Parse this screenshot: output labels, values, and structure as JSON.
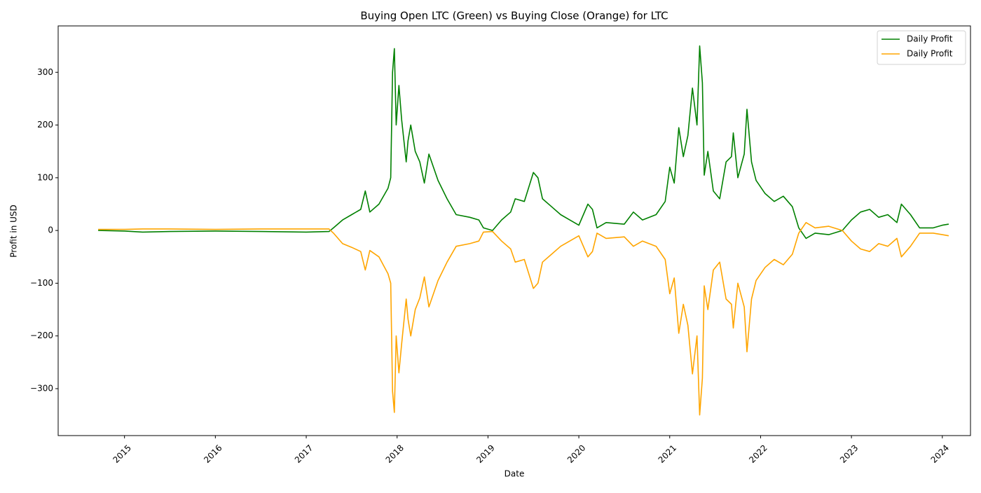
{
  "chart_data": {
    "type": "line",
    "title": "Buying Open LTC (Green) vs Buying Close (Orange) for LTC",
    "xlabel": "Date",
    "ylabel": "Profit in USD",
    "xlim": [
      2014.27,
      2024.31
    ],
    "ylim": [
      -389,
      388
    ],
    "xticks": [
      2015,
      2016,
      2017,
      2018,
      2019,
      2020,
      2021,
      2022,
      2023,
      2024
    ],
    "yticks": [
      {
        "value": -300,
        "label": "−300"
      },
      {
        "value": -200,
        "label": "−200"
      },
      {
        "value": -100,
        "label": "−100"
      },
      0,
      100,
      200,
      300
    ],
    "legend": "upper right",
    "grid": false,
    "x": [
      2014.71,
      2015.0,
      2015.2,
      2015.5,
      2016.0,
      2016.5,
      2017.0,
      2017.25,
      2017.3,
      2017.4,
      2017.5,
      2017.6,
      2017.65,
      2017.7,
      2017.8,
      2017.9,
      2017.93,
      2017.95,
      2017.97,
      2017.99,
      2018.02,
      2018.05,
      2018.1,
      2018.12,
      2018.15,
      2018.2,
      2018.25,
      2018.3,
      2018.35,
      2018.45,
      2018.55,
      2018.65,
      2018.8,
      2018.9,
      2018.95,
      2019.05,
      2019.15,
      2019.25,
      2019.3,
      2019.4,
      2019.5,
      2019.55,
      2019.6,
      2019.7,
      2019.8,
      2019.9,
      2020.0,
      2020.1,
      2020.15,
      2020.2,
      2020.3,
      2020.5,
      2020.6,
      2020.7,
      2020.85,
      2020.95,
      2021.0,
      2021.05,
      2021.1,
      2021.15,
      2021.2,
      2021.25,
      2021.3,
      2021.33,
      2021.36,
      2021.38,
      2021.42,
      2021.48,
      2021.55,
      2021.62,
      2021.68,
      2021.7,
      2021.75,
      2021.82,
      2021.85,
      2021.9,
      2021.95,
      2022.05,
      2022.15,
      2022.25,
      2022.35,
      2022.42,
      2022.5,
      2022.6,
      2022.75,
      2022.9,
      2023.0,
      2023.1,
      2023.2,
      2023.3,
      2023.4,
      2023.5,
      2023.55,
      2023.65,
      2023.75,
      2023.9,
      2024.0,
      2024.07
    ],
    "series": [
      {
        "name": "Daily Profit",
        "color": "#008000",
        "values": [
          0,
          -1,
          -3,
          -2,
          -1,
          -2,
          -3,
          -2,
          5,
          20,
          30,
          40,
          75,
          35,
          50,
          80,
          100,
          300,
          345,
          200,
          275,
          210,
          130,
          170,
          200,
          150,
          130,
          90,
          145,
          95,
          60,
          30,
          25,
          20,
          5,
          0,
          20,
          35,
          60,
          55,
          110,
          100,
          60,
          45,
          30,
          20,
          10,
          50,
          40,
          5,
          15,
          12,
          35,
          20,
          30,
          55,
          120,
          90,
          195,
          140,
          180,
          270,
          200,
          350,
          280,
          105,
          150,
          75,
          60,
          130,
          140,
          185,
          100,
          145,
          230,
          130,
          95,
          70,
          55,
          65,
          45,
          5,
          -15,
          -5,
          -8,
          0,
          20,
          35,
          40,
          25,
          30,
          15,
          50,
          30,
          5,
          5,
          10,
          12
        ]
      },
      {
        "name": "Daily Profit",
        "color": "#ffa500",
        "values": [
          2,
          2,
          3,
          3,
          2,
          3,
          3,
          3,
          -5,
          -25,
          -32,
          -40,
          -75,
          -38,
          -50,
          -82,
          -100,
          -305,
          -345,
          -200,
          -270,
          -215,
          -130,
          -168,
          -200,
          -150,
          -128,
          -88,
          -145,
          -95,
          -60,
          -30,
          -25,
          -20,
          -3,
          -2,
          -20,
          -35,
          -60,
          -55,
          -110,
          -100,
          -60,
          -45,
          -30,
          -20,
          -10,
          -50,
          -40,
          -5,
          -15,
          -12,
          -30,
          -20,
          -30,
          -55,
          -120,
          -90,
          -195,
          -140,
          -180,
          -272,
          -200,
          -350,
          -280,
          -105,
          -150,
          -75,
          -60,
          -130,
          -140,
          -185,
          -100,
          -145,
          -230,
          -130,
          -95,
          -70,
          -55,
          -65,
          -45,
          -5,
          15,
          5,
          8,
          0,
          -20,
          -35,
          -40,
          -25,
          -30,
          -15,
          -50,
          -30,
          -5,
          -5,
          -8,
          -10
        ]
      }
    ]
  }
}
